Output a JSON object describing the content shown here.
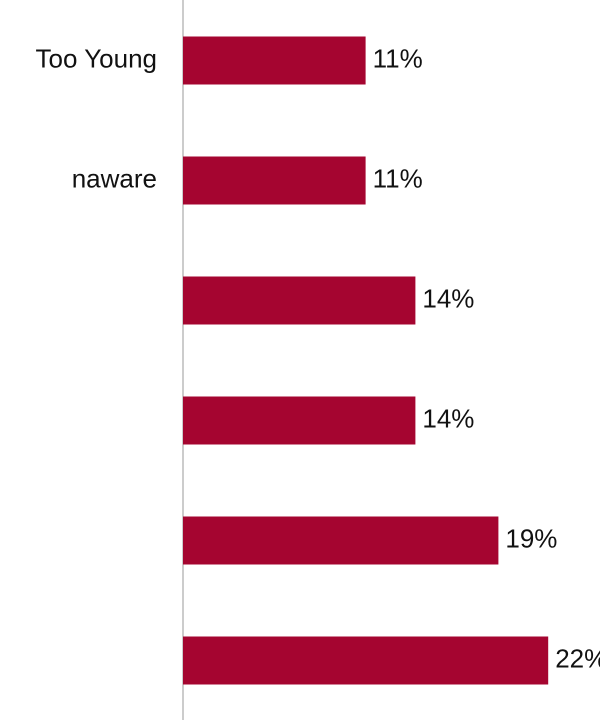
{
  "chart_data": {
    "type": "bar",
    "orientation": "horizontal",
    "categories": [
      "Too Young",
      "naware",
      null,
      null,
      null,
      null
    ],
    "values": [
      11,
      11,
      14,
      14,
      19,
      22
    ],
    "value_labels": [
      "11%",
      "11%",
      "14%",
      "14%",
      "19%",
      "22%"
    ],
    "color": "#a50530",
    "xlim": [
      0,
      25
    ]
  }
}
